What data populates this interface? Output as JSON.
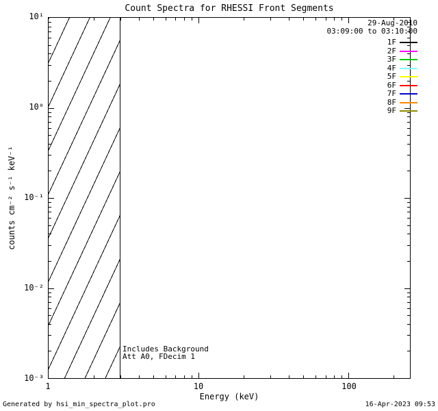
{
  "footer": {
    "left": "Generated by hsi_min_spectra_plot.pro",
    "right": "16-Apr-2023 09:53"
  },
  "chart_data": {
    "type": "line",
    "title": "Count Spectra for RHESSI Front Segments",
    "xlabel": "Energy (keV)",
    "ylabel": "counts cm⁻² s⁻¹ keV⁻¹",
    "x_scale": "log",
    "y_scale": "log",
    "xlim": [
      1,
      256
    ],
    "ylim": [
      0.001,
      10
    ],
    "x_ticks": [
      1,
      10,
      100
    ],
    "x_tick_labels": [
      "1",
      "10",
      "100"
    ],
    "y_ticks": [
      10,
      1,
      0.1,
      0.01,
      0.001
    ],
    "y_tick_labels": [
      "10¹",
      "10⁰",
      "10⁻¹",
      "10⁻²",
      "10⁻³"
    ],
    "grid": false,
    "series": [],
    "hatched_region": {
      "x_start": 1,
      "x_end": 3,
      "style": "diagonal-hatch",
      "covers": "full y-range"
    },
    "annotations": [
      "Includes Background",
      "Att A0, FDecim 1"
    ],
    "legend": {
      "position": "top-right",
      "date": "29-Aug-2010",
      "time_range": "03:09:00 to 03:10:00",
      "entries": [
        {
          "label": "1F",
          "color": "#000000"
        },
        {
          "label": "2F",
          "color": "#ff00ff"
        },
        {
          "label": "3F",
          "color": "#00cc00"
        },
        {
          "label": "4F",
          "color": "#7fffff"
        },
        {
          "label": "5F",
          "color": "#ffff00"
        },
        {
          "label": "6F",
          "color": "#ff0000"
        },
        {
          "label": "7F",
          "color": "#0000cc"
        },
        {
          "label": "8F",
          "color": "#ff8800"
        },
        {
          "label": "9F",
          "color": "#8a8a00"
        }
      ]
    }
  }
}
